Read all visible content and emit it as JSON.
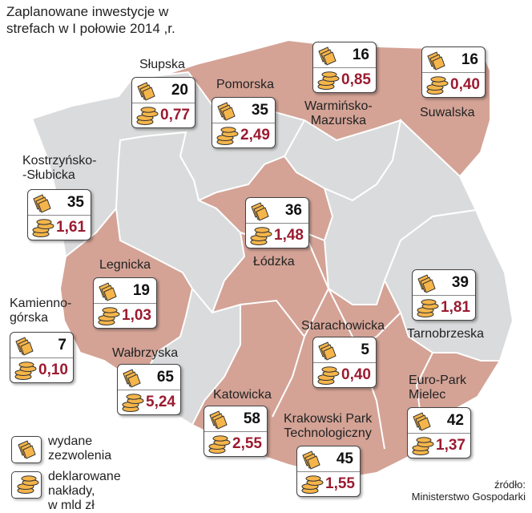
{
  "title": "Zaplanowane inwestycje w strefach w I połowie 2014 ,r.",
  "colors": {
    "zone_fill": "#d4a396",
    "other_fill": "#dadbdc",
    "border": "#ffffff",
    "value_color": "#9b1b30",
    "coin_fill": "#f5b54a"
  },
  "zones": [
    {
      "id": "slupska",
      "name": "Słupska",
      "permits": "20",
      "outlays": "0,77"
    },
    {
      "id": "pomorska",
      "name": "Pomorska",
      "permits": "35",
      "outlays": "2,49"
    },
    {
      "id": "warminsko",
      "name": "Warmińsko-\nMazurska",
      "permits": "16",
      "outlays": "0,85"
    },
    {
      "id": "suwalska",
      "name": "Suwalska",
      "permits": "16",
      "outlays": "0,40"
    },
    {
      "id": "kostrzynsko",
      "name": "Kostrzyńsko-\n-Słubicka",
      "permits": "35",
      "outlays": "1,61"
    },
    {
      "id": "lodzka",
      "name": "Łódzka",
      "permits": "36",
      "outlays": "1,48"
    },
    {
      "id": "legnicka",
      "name": "Legnicka",
      "permits": "19",
      "outlays": "1,03"
    },
    {
      "id": "tarnobrzeska",
      "name": "Tarnobrzeska",
      "permits": "39",
      "outlays": "1,81"
    },
    {
      "id": "kamiennogorska",
      "name": "Kamienno-\ngórska",
      "permits": "7",
      "outlays": "0,10"
    },
    {
      "id": "starachowicka",
      "name": "Starachowicka",
      "permits": "5",
      "outlays": "0,40"
    },
    {
      "id": "walbrzyska",
      "name": "Wałbrzyska",
      "permits": "65",
      "outlays": "5,24"
    },
    {
      "id": "katowicka",
      "name": "Katowicka",
      "permits": "58",
      "outlays": "2,55"
    },
    {
      "id": "europark",
      "name": "Euro-Park\nMielec",
      "permits": "42",
      "outlays": "1,37"
    },
    {
      "id": "krakowski",
      "name": "Krakowski Park\nTechnologiczny",
      "permits": "45",
      "outlays": "1,55"
    }
  ],
  "legend": {
    "permits_label": "wydane\nzezwolenia",
    "outlays_label": "deklarowane nakłady,\nw mld zł"
  },
  "source": "źródło:\nMinisterstwo Gospodarki"
}
